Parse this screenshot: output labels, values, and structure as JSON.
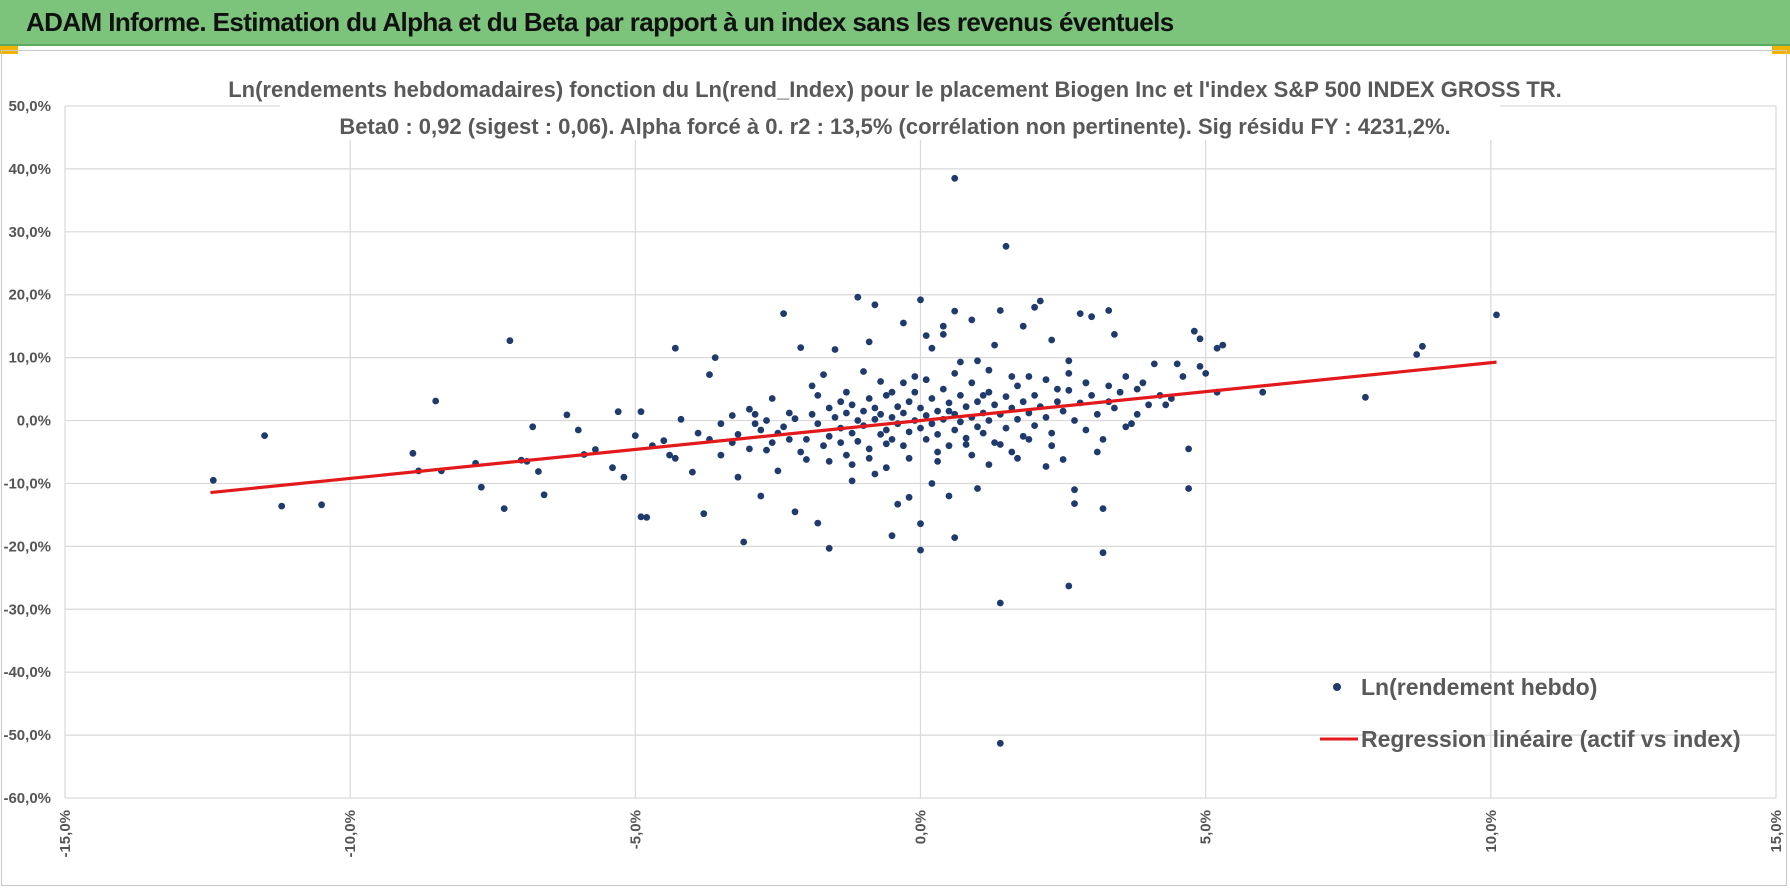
{
  "header": {
    "title": "ADAM Informe. Estimation du Alpha et du Beta par rapport à un index sans les revenus éventuels"
  },
  "colors": {
    "banner": "#7cc47b",
    "accent_corner": "#f0b400",
    "points": "#1f3b6e",
    "regression": "#e31a1c",
    "grid": "#d9d9d9",
    "text": "#595959"
  },
  "chart_data": {
    "type": "scatter",
    "title_line1": "Ln(rendements hebdomadaires) fonction du Ln(rend_Index) pour le placement Biogen Inc et l'index S&P 500 INDEX GROSS TR.",
    "title_line2": "Beta0 : 0,92 (sigest : 0,06).  Alpha forcé à 0. r2 : 13,5% (corrélation non pertinente). Sig résidu FY : 4231,2%.",
    "xlabel": "",
    "ylabel": "",
    "xlim": [
      -0.15,
      0.15
    ],
    "ylim": [
      -0.6,
      0.5
    ],
    "x_ticks": [
      -0.15,
      -0.1,
      -0.05,
      0.0,
      0.05,
      0.1,
      0.15
    ],
    "x_tick_labels": [
      "-15,0%",
      "-10,0%",
      "-5,0%",
      "0,0%",
      "5,0%",
      "10,0%",
      "15,0%"
    ],
    "y_ticks": [
      0.5,
      0.4,
      0.3,
      0.2,
      0.1,
      0.0,
      -0.1,
      -0.2,
      -0.3,
      -0.4,
      -0.5,
      -0.6
    ],
    "y_tick_labels": [
      "50,0%",
      "40,0%",
      "30,0%",
      "20,0%",
      "10,0%",
      "0,0%",
      "-10,0%",
      "-20,0%",
      "-30,0%",
      "-40,0%",
      "-50,0%",
      "-60,0%"
    ],
    "grid": true,
    "legend_position": "bottom-right",
    "series": [
      {
        "name": "Ln(rendement hebdo)",
        "kind": "scatter",
        "points": [
          [
            -0.124,
            -0.095
          ],
          [
            -0.115,
            -0.024
          ],
          [
            -0.112,
            -0.136
          ],
          [
            -0.105,
            -0.134
          ],
          [
            -0.089,
            -0.052
          ],
          [
            -0.088,
            -0.08
          ],
          [
            -0.085,
            0.031
          ],
          [
            -0.084,
            -0.08
          ],
          [
            -0.078,
            -0.068
          ],
          [
            -0.077,
            -0.106
          ],
          [
            -0.073,
            -0.14
          ],
          [
            -0.072,
            0.127
          ],
          [
            -0.07,
            -0.063
          ],
          [
            -0.069,
            -0.065
          ],
          [
            -0.068,
            -0.01
          ],
          [
            -0.067,
            -0.081
          ],
          [
            -0.066,
            -0.118
          ],
          [
            -0.062,
            0.009
          ],
          [
            -0.06,
            -0.015
          ],
          [
            -0.059,
            -0.054
          ],
          [
            -0.057,
            -0.046
          ],
          [
            -0.054,
            -0.075
          ],
          [
            -0.053,
            0.014
          ],
          [
            -0.052,
            -0.09
          ],
          [
            -0.05,
            -0.024
          ],
          [
            -0.049,
            -0.153
          ],
          [
            -0.049,
            0.014
          ],
          [
            -0.048,
            -0.154
          ],
          [
            -0.047,
            -0.04
          ],
          [
            -0.045,
            -0.032
          ],
          [
            -0.044,
            -0.055
          ],
          [
            -0.043,
            -0.06
          ],
          [
            -0.043,
            0.115
          ],
          [
            -0.042,
            0.002
          ],
          [
            -0.04,
            -0.082
          ],
          [
            -0.039,
            -0.02
          ],
          [
            -0.038,
            -0.148
          ],
          [
            -0.037,
            -0.03
          ],
          [
            -0.037,
            0.073
          ],
          [
            -0.036,
            0.1
          ],
          [
            -0.035,
            -0.055
          ],
          [
            -0.033,
            -0.035
          ],
          [
            -0.032,
            -0.09
          ],
          [
            -0.031,
            -0.193
          ],
          [
            -0.03,
            0.018
          ],
          [
            -0.029,
            -0.005
          ],
          [
            -0.028,
            -0.12
          ],
          [
            -0.027,
            -0.047
          ],
          [
            -0.026,
            0.035
          ],
          [
            -0.025,
            -0.08
          ],
          [
            -0.024,
            0.17
          ],
          [
            -0.023,
            -0.03
          ],
          [
            -0.022,
            -0.145
          ],
          [
            -0.021,
            0.116
          ],
          [
            -0.02,
            -0.062
          ],
          [
            -0.019,
            0.055
          ],
          [
            -0.018,
            -0.163
          ],
          [
            -0.017,
            0.073
          ],
          [
            -0.016,
            -0.203
          ],
          [
            -0.015,
            0.113
          ],
          [
            -0.014,
            -0.035
          ],
          [
            -0.013,
            0.045
          ],
          [
            -0.012,
            -0.096
          ],
          [
            -0.011,
            0.196
          ],
          [
            -0.01,
            0.078
          ],
          [
            -0.009,
            0.125
          ],
          [
            -0.008,
            0.184
          ],
          [
            -0.008,
            -0.085
          ],
          [
            -0.007,
            0.062
          ],
          [
            -0.006,
            -0.037
          ],
          [
            -0.005,
            -0.183
          ],
          [
            -0.005,
            0.045
          ],
          [
            -0.004,
            -0.133
          ],
          [
            -0.003,
            0.155
          ],
          [
            -0.002,
            -0.06
          ],
          [
            -0.002,
            -0.122
          ],
          [
            -0.001,
            0.07
          ],
          [
            0.0,
            -0.164
          ],
          [
            0.0,
            0.192
          ],
          [
            0.0,
            -0.206
          ],
          [
            0.001,
            0.135
          ],
          [
            0.002,
            -0.1
          ],
          [
            0.002,
            0.115
          ],
          [
            0.003,
            -0.05
          ],
          [
            0.004,
            0.15
          ],
          [
            0.004,
            0.137
          ],
          [
            0.005,
            -0.12
          ],
          [
            0.005,
            0.015
          ],
          [
            0.006,
            -0.186
          ],
          [
            0.006,
            0.174
          ],
          [
            0.006,
            0.385
          ],
          [
            0.007,
            0.093
          ],
          [
            0.008,
            -0.038
          ],
          [
            0.009,
            0.16
          ],
          [
            0.01,
            -0.108
          ],
          [
            0.01,
            0.095
          ],
          [
            0.011,
            0.04
          ],
          [
            0.012,
            -0.07
          ],
          [
            0.013,
            0.12
          ],
          [
            0.014,
            -0.038
          ],
          [
            0.014,
            0.175
          ],
          [
            0.014,
            -0.29
          ],
          [
            0.014,
            -0.513
          ],
          [
            0.015,
            0.277
          ],
          [
            0.016,
            0.07
          ],
          [
            0.017,
            -0.06
          ],
          [
            0.018,
            0.15
          ],
          [
            0.019,
            -0.03
          ],
          [
            0.02,
            0.18
          ],
          [
            0.021,
            0.19
          ],
          [
            0.022,
            -0.073
          ],
          [
            0.023,
            0.128
          ],
          [
            0.024,
            0.05
          ],
          [
            0.025,
            -0.062
          ],
          [
            0.026,
            -0.263
          ],
          [
            0.026,
            0.095
          ],
          [
            0.027,
            -0.11
          ],
          [
            0.027,
            -0.132
          ],
          [
            0.028,
            0.17
          ],
          [
            0.029,
            0.06
          ],
          [
            0.03,
            0.165
          ],
          [
            0.031,
            -0.05
          ],
          [
            0.032,
            -0.21
          ],
          [
            0.032,
            -0.14
          ],
          [
            0.033,
            0.175
          ],
          [
            0.033,
            0.03
          ],
          [
            0.034,
            0.137
          ],
          [
            0.035,
            0.045
          ],
          [
            0.036,
            0.07
          ],
          [
            0.037,
            -0.005
          ],
          [
            0.038,
            0.01
          ],
          [
            0.039,
            0.06
          ],
          [
            0.04,
            0.025
          ],
          [
            0.041,
            0.09
          ],
          [
            0.042,
            0.04
          ],
          [
            0.043,
            0.025
          ],
          [
            0.044,
            0.035
          ],
          [
            0.045,
            0.09
          ],
          [
            0.046,
            0.07
          ],
          [
            0.047,
            -0.108
          ],
          [
            0.047,
            -0.045
          ],
          [
            0.048,
            0.142
          ],
          [
            0.049,
            0.13
          ],
          [
            0.049,
            0.086
          ],
          [
            0.05,
            0.075
          ],
          [
            0.052,
            0.115
          ],
          [
            0.052,
            0.045
          ],
          [
            0.053,
            0.12
          ],
          [
            0.06,
            0.045
          ],
          [
            0.078,
            0.037
          ],
          [
            0.087,
            0.105
          ],
          [
            0.088,
            0.118
          ],
          [
            0.101,
            0.168
          ],
          [
            -0.025,
            -0.02
          ],
          [
            -0.024,
            -0.01
          ],
          [
            -0.022,
            0.003
          ],
          [
            -0.021,
            -0.05
          ],
          [
            -0.019,
            0.01
          ],
          [
            -0.018,
            -0.005
          ],
          [
            -0.017,
            -0.04
          ],
          [
            -0.016,
            0.02
          ],
          [
            -0.016,
            -0.025
          ],
          [
            -0.015,
            0.005
          ],
          [
            -0.014,
            -0.012
          ],
          [
            -0.014,
            0.03
          ],
          [
            -0.013,
            -0.055
          ],
          [
            -0.013,
            0.012
          ],
          [
            -0.012,
            -0.02
          ],
          [
            -0.012,
            0.025
          ],
          [
            -0.011,
            0.0
          ],
          [
            -0.011,
            -0.033
          ],
          [
            -0.01,
            0.015
          ],
          [
            -0.01,
            -0.008
          ],
          [
            -0.009,
            0.035
          ],
          [
            -0.009,
            -0.045
          ],
          [
            -0.008,
            0.002
          ],
          [
            -0.008,
            0.02
          ],
          [
            -0.007,
            -0.022
          ],
          [
            -0.007,
            0.01
          ],
          [
            -0.006,
            0.04
          ],
          [
            -0.006,
            -0.015
          ],
          [
            -0.005,
            0.005
          ],
          [
            -0.005,
            -0.03
          ],
          [
            -0.004,
            0.022
          ],
          [
            -0.004,
            -0.005
          ],
          [
            -0.003,
            -0.04
          ],
          [
            -0.003,
            0.012
          ],
          [
            -0.002,
            0.03
          ],
          [
            -0.002,
            -0.018
          ],
          [
            -0.001,
            0.0
          ],
          [
            -0.001,
            0.045
          ],
          [
            0.0,
            -0.012
          ],
          [
            0.0,
            0.02
          ],
          [
            0.001,
            -0.03
          ],
          [
            0.001,
            0.008
          ],
          [
            0.002,
            0.035
          ],
          [
            0.002,
            -0.005
          ],
          [
            0.003,
            0.015
          ],
          [
            0.003,
            -0.022
          ],
          [
            0.004,
            0.05
          ],
          [
            0.004,
            0.002
          ],
          [
            0.005,
            -0.04
          ],
          [
            0.005,
            0.028
          ],
          [
            0.006,
            0.01
          ],
          [
            0.006,
            -0.015
          ],
          [
            0.007,
            0.04
          ],
          [
            0.007,
            -0.002
          ],
          [
            0.008,
            0.022
          ],
          [
            0.008,
            -0.028
          ],
          [
            0.009,
            0.005
          ],
          [
            0.009,
            0.06
          ],
          [
            0.01,
            -0.01
          ],
          [
            0.01,
            0.03
          ],
          [
            0.011,
            0.012
          ],
          [
            0.011,
            -0.02
          ],
          [
            0.012,
            0.045
          ],
          [
            0.012,
            0.0
          ],
          [
            0.013,
            0.025
          ],
          [
            0.013,
            -0.035
          ],
          [
            0.014,
            0.01
          ],
          [
            0.015,
            0.038
          ],
          [
            0.015,
            -0.012
          ],
          [
            0.016,
            0.02
          ],
          [
            0.017,
            0.055
          ],
          [
            0.017,
            0.002
          ],
          [
            0.018,
            -0.025
          ],
          [
            0.018,
            0.03
          ],
          [
            0.019,
            0.012
          ],
          [
            0.02,
            0.04
          ],
          [
            0.02,
            -0.008
          ],
          [
            0.021,
            0.022
          ],
          [
            0.022,
            0.065
          ],
          [
            0.022,
            0.005
          ],
          [
            0.023,
            -0.02
          ],
          [
            0.024,
            0.03
          ],
          [
            0.025,
            0.015
          ],
          [
            0.026,
            0.048
          ],
          [
            0.027,
            0.0
          ],
          [
            0.028,
            0.028
          ],
          [
            0.029,
            -0.015
          ],
          [
            0.03,
            0.04
          ],
          [
            0.031,
            0.01
          ],
          [
            0.033,
            0.055
          ],
          [
            -0.035,
            -0.005
          ],
          [
            -0.033,
            0.008
          ],
          [
            -0.032,
            -0.022
          ],
          [
            -0.03,
            -0.045
          ],
          [
            -0.029,
            0.01
          ],
          [
            -0.028,
            -0.015
          ],
          [
            -0.027,
            0.0
          ],
          [
            -0.026,
            -0.035
          ],
          [
            -0.023,
            0.012
          ],
          [
            -0.02,
            -0.03
          ],
          [
            -0.018,
            0.04
          ],
          [
            -0.016,
            -0.065
          ],
          [
            -0.012,
            -0.07
          ],
          [
            -0.009,
            -0.06
          ],
          [
            -0.006,
            -0.075
          ],
          [
            -0.003,
            0.06
          ],
          [
            0.001,
            0.065
          ],
          [
            0.003,
            -0.065
          ],
          [
            0.006,
            0.075
          ],
          [
            0.009,
            -0.055
          ],
          [
            0.012,
            0.08
          ],
          [
            0.016,
            -0.05
          ],
          [
            0.019,
            0.07
          ],
          [
            0.023,
            -0.04
          ],
          [
            0.026,
            0.075
          ],
          [
            0.029,
            0.06
          ],
          [
            0.032,
            -0.03
          ],
          [
            0.034,
            0.02
          ],
          [
            0.036,
            -0.01
          ],
          [
            0.038,
            0.05
          ]
        ]
      },
      {
        "name": "Regression linéaire (actif vs index)",
        "kind": "line",
        "points": [
          [
            -0.1245,
            -0.1145
          ],
          [
            0.101,
            0.0929
          ]
        ]
      }
    ]
  }
}
